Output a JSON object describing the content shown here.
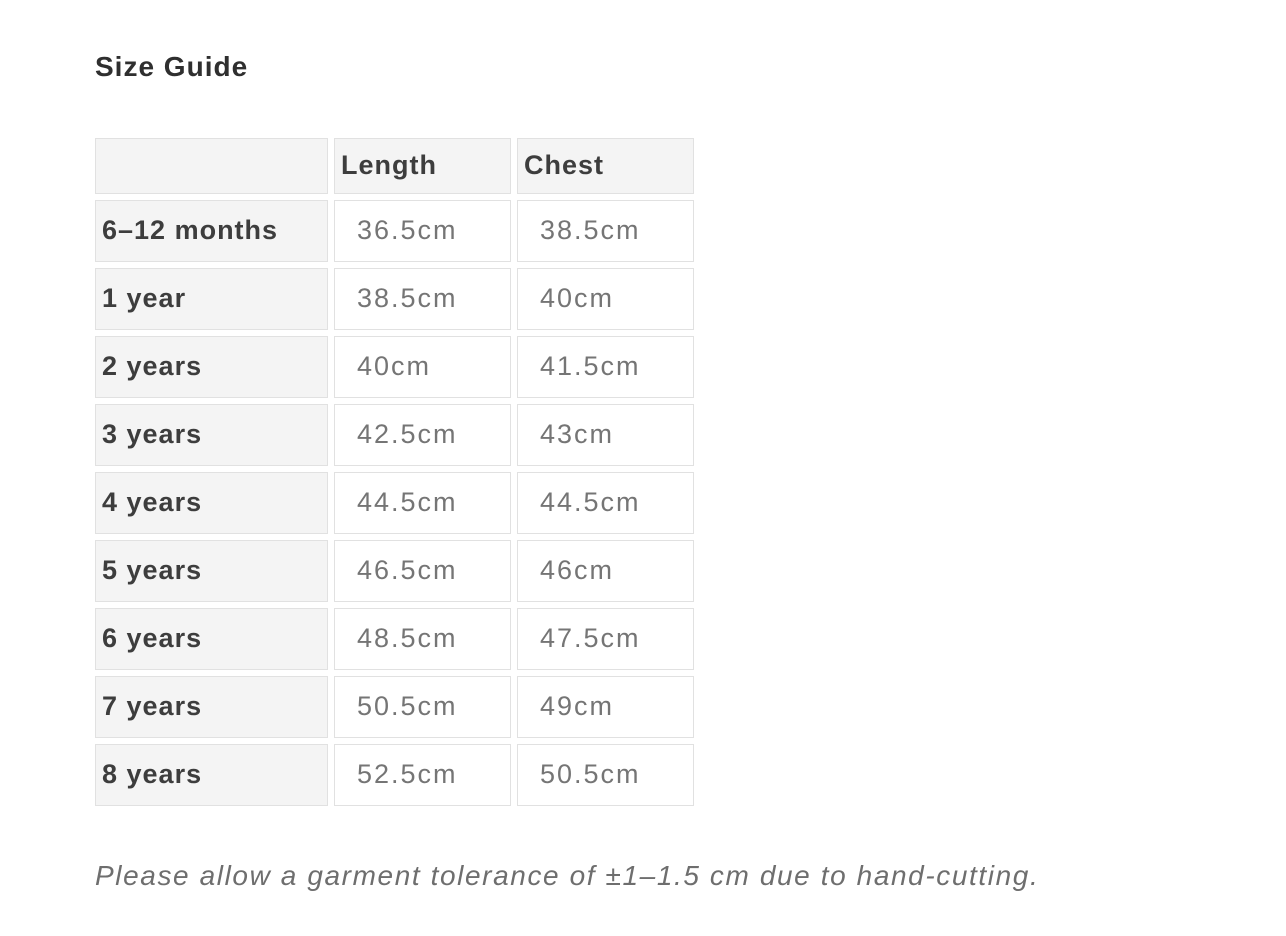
{
  "page": {
    "title": "Size Guide",
    "footnote": "Please allow a garment tolerance of ±1–1.5 cm due to hand-cutting."
  },
  "table": {
    "columns": [
      "",
      "Length",
      "Chest"
    ],
    "rows": [
      {
        "label": "6–12 months",
        "length": "36.5cm",
        "chest": "38.5cm"
      },
      {
        "label": "1 year",
        "length": "38.5cm",
        "chest": "40cm"
      },
      {
        "label": "2 years",
        "length": "40cm",
        "chest": "41.5cm"
      },
      {
        "label": "3 years",
        "length": "42.5cm",
        "chest": "43cm"
      },
      {
        "label": "4 years",
        "length": "44.5cm",
        "chest": "44.5cm"
      },
      {
        "label": "5 years",
        "length": "46.5cm",
        "chest": "46cm"
      },
      {
        "label": "6 years",
        "length": "48.5cm",
        "chest": "47.5cm"
      },
      {
        "label": "7 years",
        "length": "50.5cm",
        "chest": "49cm"
      },
      {
        "label": "8 years",
        "length": "52.5cm",
        "chest": "50.5cm"
      }
    ]
  },
  "colors": {
    "bg": "#ffffff",
    "cell-gray": "#f4f4f4",
    "border": "#e1e1e1",
    "label-text": "#3d3d3d",
    "value-text": "#757575",
    "title-text": "#2f2f2f",
    "note-text": "#6e6e6e"
  }
}
